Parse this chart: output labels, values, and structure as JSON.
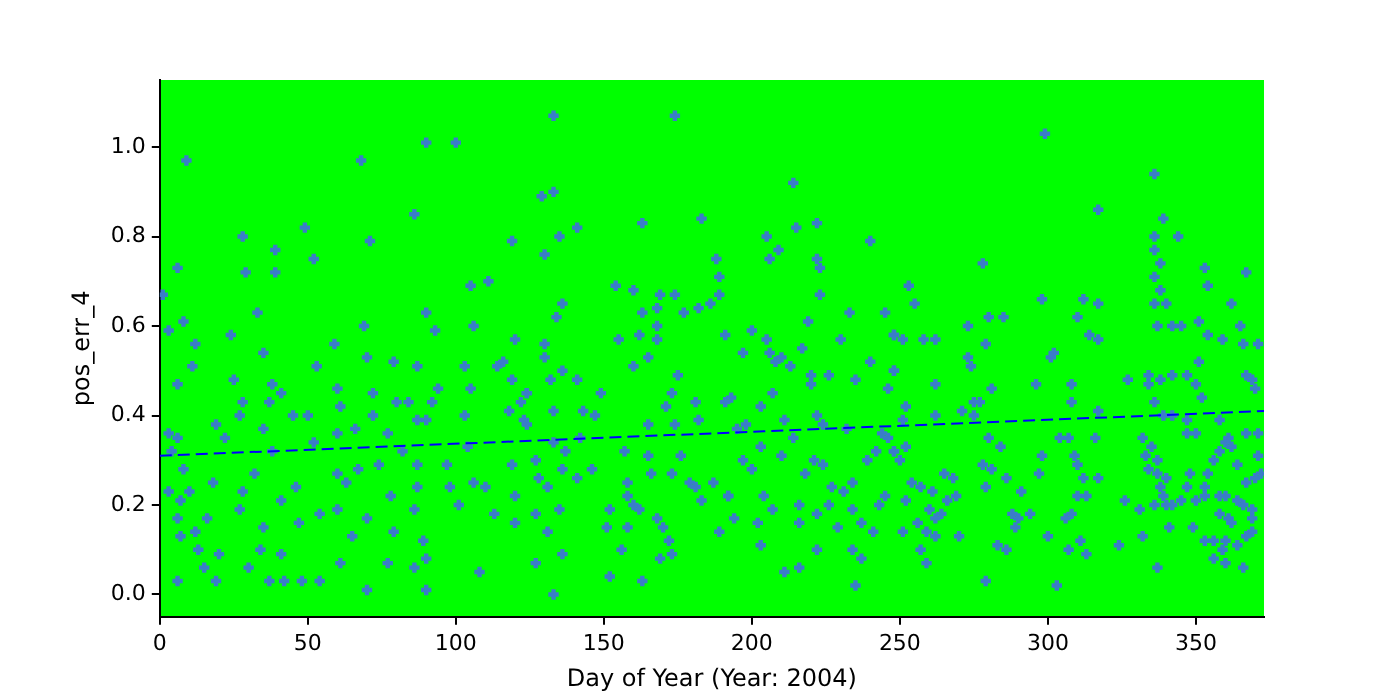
{
  "chart_data": {
    "type": "scatter",
    "xlabel": "Day of Year (Year: 2004)",
    "ylabel": "pos_err_4",
    "xlim": [
      0,
      373
    ],
    "xticks": [
      0,
      50,
      100,
      150,
      200,
      250,
      300,
      350
    ],
    "ylim": [
      -0.05,
      1.15
    ],
    "yticks": [
      {
        "value": 0,
        "label": "0.0"
      },
      0.2,
      0.4,
      0.6,
      0.8,
      {
        "value": 1,
        "label": "1.0"
      }
    ],
    "grid": false,
    "legend": false,
    "marker": "cross",
    "series": [
      {
        "color": "#3a7dc8",
        "x": [
          1,
          9,
          6,
          3,
          8,
          12,
          6,
          11,
          3,
          4,
          6,
          8,
          3,
          7,
          10,
          6,
          7,
          6,
          12,
          13,
          16,
          15,
          19,
          20,
          18,
          19,
          22,
          24,
          25,
          28,
          29,
          28,
          27,
          33,
          35,
          39,
          39,
          38,
          37,
          41,
          35,
          38,
          32,
          28,
          27,
          30,
          34,
          35,
          37,
          41,
          41,
          42,
          45,
          46,
          48,
          47,
          49,
          52,
          53,
          54,
          54,
          50,
          52,
          59,
          60,
          61,
          60,
          60,
          60,
          61,
          63,
          66,
          65,
          68,
          71,
          69,
          70,
          72,
          72,
          67,
          70,
          70,
          74,
          77,
          78,
          79,
          77,
          79,
          80,
          82,
          84,
          86,
          87,
          87,
          87,
          87,
          86,
          86,
          89,
          90,
          90,
          90,
          93,
          90,
          90,
          92,
          94,
          97,
          98,
          100,
          101,
          103,
          103,
          105,
          106,
          105,
          104,
          106,
          111,
          110,
          108,
          113,
          114,
          116,
          119,
          120,
          119,
          118,
          119,
          120,
          120,
          122,
          124,
          124,
          133,
          174,
          129,
          133,
          135,
          141,
          130,
          163,
          183,
          214,
          215,
          222,
          240,
          205,
          209,
          206,
          188,
          189,
          154,
          160,
          169,
          174,
          163,
          168,
          177,
          182,
          186,
          189,
          136,
          134,
          130,
          130,
          155,
          162,
          168,
          168,
          165,
          160,
          136,
          132,
          141,
          124,
          149,
          191,
          197,
          200,
          205,
          206,
          208,
          210,
          213,
          217,
          223,
          222,
          223,
          219,
          230,
          233,
          220,
          220,
          226,
          235,
          240,
          245,
          248,
          248,
          246,
          175,
          173,
          171,
          181,
          193,
          191,
          203,
          207,
          123,
          133,
          143,
          147,
          165,
          174,
          182,
          195,
          198,
          211,
          222,
          224,
          232,
          244,
          127,
          128,
          131,
          133,
          137,
          142,
          146,
          136,
          141,
          157,
          158,
          166,
          165,
          173,
          176,
          179,
          181,
          187,
          192,
          197,
          200,
          203,
          210,
          214,
          218,
          221,
          224,
          227,
          234,
          239,
          242,
          248,
          127,
          135,
          131,
          136,
          127,
          133,
          151,
          152,
          158,
          160,
          162,
          158,
          168,
          170,
          172,
          156,
          152,
          163,
          169,
          173,
          183,
          189,
          192,
          194,
          202,
          203,
          204,
          207,
          211,
          216,
          216,
          216,
          222,
          222,
          226,
          229,
          231,
          234,
          234,
          235,
          237,
          237,
          241,
          243,
          245,
          299,
          336,
          317,
          339,
          344,
          336,
          336,
          338,
          336,
          338,
          340,
          336,
          337,
          342,
          345,
          353,
          354,
          367,
          362,
          351,
          365,
          354,
          359,
          366,
          371,
          253,
          255,
          278,
          298,
          312,
          317,
          310,
          280,
          285,
          273,
          279,
          273,
          274,
          248,
          251,
          258,
          262,
          302,
          301,
          314,
          317,
          248,
          262,
          281,
          296,
          308,
          327,
          334,
          338,
          342,
          347,
          351,
          350,
          352,
          334,
          367,
          369,
          370,
          252,
          271,
          275,
          277,
          275,
          262,
          308,
          317,
          336,
          339,
          342,
          347,
          347,
          350,
          358,
          367,
          371,
          251,
          252,
          246,
          248,
          250,
          254,
          252,
          257,
          261,
          265,
          268,
          269,
          266,
          260,
          262,
          264,
          256,
          259,
          262,
          251,
          257,
          259,
          270,
          278,
          281,
          280,
          284,
          286,
          279,
          291,
          288,
          290,
          294,
          289,
          283,
          286,
          279,
          298,
          297,
          304,
          307,
          309,
          310,
          312,
          316,
          317,
          310,
          313,
          308,
          306,
          311,
          307,
          313,
          300,
          303,
          324,
          326,
          331,
          332,
          332,
          333,
          334,
          335,
          337,
          337,
          338,
          339,
          340,
          336,
          337,
          340,
          342,
          345,
          347,
          348,
          350,
          353,
          353,
          354,
          356,
          358,
          360,
          361,
          362,
          364,
          371,
          367,
          370,
          372,
          358,
          360,
          358,
          361,
          362,
          364,
          366,
          369,
          369,
          369,
          367,
          353,
          356,
          359,
          360,
          364,
          356,
          360,
          366,
          341,
          349
        ],
        "values": [
          0.67,
          0.97,
          0.73,
          0.59,
          0.61,
          0.56,
          0.47,
          0.51,
          0.36,
          0.32,
          0.35,
          0.28,
          0.23,
          0.21,
          0.23,
          0.17,
          0.13,
          0.03,
          0.14,
          0.1,
          0.17,
          0.06,
          0.03,
          0.09,
          0.25,
          0.38,
          0.35,
          0.58,
          0.48,
          0.8,
          0.72,
          0.43,
          0.4,
          0.63,
          0.54,
          0.77,
          0.72,
          0.47,
          0.43,
          0.45,
          0.37,
          0.32,
          0.27,
          0.23,
          0.19,
          0.06,
          0.1,
          0.15,
          0.03,
          0.21,
          0.09,
          0.03,
          0.4,
          0.24,
          0.03,
          0.16,
          0.82,
          0.75,
          0.51,
          0.18,
          0.03,
          0.4,
          0.34,
          0.56,
          0.46,
          0.42,
          0.36,
          0.27,
          0.19,
          0.07,
          0.25,
          0.37,
          0.13,
          0.97,
          0.79,
          0.6,
          0.53,
          0.4,
          0.45,
          0.28,
          0.17,
          0.01,
          0.29,
          0.36,
          0.22,
          0.14,
          0.07,
          0.52,
          0.43,
          0.32,
          0.43,
          0.85,
          0.51,
          0.39,
          0.29,
          0.24,
          0.19,
          0.06,
          0.12,
          1.01,
          0.63,
          0.39,
          0.59,
          0.01,
          0.08,
          0.43,
          0.46,
          0.29,
          0.24,
          1.01,
          0.2,
          0.51,
          0.4,
          0.69,
          0.6,
          0.46,
          0.33,
          0.25,
          0.7,
          0.24,
          0.05,
          0.18,
          0.51,
          0.52,
          0.79,
          0.57,
          0.48,
          0.41,
          0.29,
          0.22,
          0.16,
          0.43,
          0.38,
          0.45,
          1.07,
          1.07,
          0.89,
          0.9,
          0.8,
          0.82,
          0.76,
          0.83,
          0.84,
          0.92,
          0.82,
          0.83,
          0.79,
          0.8,
          0.77,
          0.75,
          0.75,
          0.71,
          0.69,
          0.68,
          0.67,
          0.67,
          0.63,
          0.64,
          0.63,
          0.64,
          0.65,
          0.67,
          0.65,
          0.62,
          0.56,
          0.53,
          0.57,
          0.58,
          0.6,
          0.57,
          0.53,
          0.51,
          0.5,
          0.48,
          0.48,
          0.45,
          0.45,
          0.58,
          0.54,
          0.59,
          0.57,
          0.54,
          0.52,
          0.53,
          0.51,
          0.55,
          0.67,
          0.75,
          0.73,
          0.61,
          0.57,
          0.63,
          0.49,
          0.47,
          0.49,
          0.48,
          0.52,
          0.63,
          0.58,
          0.5,
          0.46,
          0.49,
          0.45,
          0.42,
          0.43,
          0.44,
          0.43,
          0.42,
          0.45,
          0.39,
          0.41,
          0.41,
          0.4,
          0.38,
          0.38,
          0.39,
          0.37,
          0.38,
          0.39,
          0.4,
          0.38,
          0.37,
          0.36,
          0.3,
          0.26,
          0.24,
          0.34,
          0.32,
          0.35,
          0.28,
          0.28,
          0.26,
          0.32,
          0.25,
          0.27,
          0.31,
          0.27,
          0.31,
          0.25,
          0.24,
          0.25,
          0.22,
          0.3,
          0.28,
          0.33,
          0.31,
          0.35,
          0.27,
          0.3,
          0.29,
          0.24,
          0.25,
          0.3,
          0.32,
          0.32,
          0.18,
          0.19,
          0.14,
          0.09,
          0.07,
          0.0,
          0.15,
          0.19,
          0.22,
          0.2,
          0.19,
          0.15,
          0.17,
          0.15,
          0.12,
          0.1,
          0.04,
          0.03,
          0.08,
          0.09,
          0.21,
          0.14,
          0.22,
          0.17,
          0.16,
          0.11,
          0.22,
          0.19,
          0.05,
          0.2,
          0.16,
          0.06,
          0.18,
          0.1,
          0.2,
          0.15,
          0.23,
          0.19,
          0.1,
          0.02,
          0.08,
          0.16,
          0.14,
          0.2,
          0.22,
          1.03,
          0.94,
          0.86,
          0.84,
          0.8,
          0.8,
          0.77,
          0.74,
          0.71,
          0.68,
          0.65,
          0.65,
          0.6,
          0.6,
          0.6,
          0.73,
          0.69,
          0.72,
          0.65,
          0.61,
          0.6,
          0.58,
          0.57,
          0.56,
          0.56,
          0.69,
          0.65,
          0.74,
          0.66,
          0.66,
          0.65,
          0.62,
          0.62,
          0.62,
          0.6,
          0.56,
          0.53,
          0.51,
          0.58,
          0.57,
          0.57,
          0.57,
          0.54,
          0.53,
          0.58,
          0.57,
          0.5,
          0.47,
          0.46,
          0.47,
          0.47,
          0.48,
          0.49,
          0.48,
          0.49,
          0.49,
          0.52,
          0.47,
          0.44,
          0.47,
          0.49,
          0.48,
          0.46,
          0.42,
          0.41,
          0.43,
          0.43,
          0.4,
          0.4,
          0.43,
          0.41,
          0.43,
          0.4,
          0.4,
          0.39,
          0.36,
          0.36,
          0.39,
          0.36,
          0.36,
          0.39,
          0.33,
          0.35,
          0.32,
          0.3,
          0.25,
          0.21,
          0.24,
          0.23,
          0.27,
          0.26,
          0.22,
          0.21,
          0.19,
          0.17,
          0.18,
          0.16,
          0.14,
          0.13,
          0.14,
          0.1,
          0.07,
          0.13,
          0.29,
          0.28,
          0.35,
          0.33,
          0.26,
          0.24,
          0.23,
          0.18,
          0.17,
          0.18,
          0.15,
          0.11,
          0.1,
          0.03,
          0.31,
          0.27,
          0.35,
          0.35,
          0.31,
          0.29,
          0.26,
          0.35,
          0.26,
          0.22,
          0.22,
          0.18,
          0.17,
          0.12,
          0.1,
          0.09,
          0.13,
          0.02,
          0.11,
          0.21,
          0.19,
          0.13,
          0.35,
          0.31,
          0.28,
          0.33,
          0.3,
          0.27,
          0.24,
          0.22,
          0.2,
          0.2,
          0.06,
          0.26,
          0.2,
          0.21,
          0.24,
          0.27,
          0.21,
          0.24,
          0.22,
          0.27,
          0.3,
          0.32,
          0.34,
          0.35,
          0.33,
          0.29,
          0.31,
          0.25,
          0.26,
          0.27,
          0.22,
          0.22,
          0.18,
          0.17,
          0.16,
          0.21,
          0.2,
          0.19,
          0.17,
          0.14,
          0.13,
          0.12,
          0.12,
          0.1,
          0.12,
          0.11,
          0.08,
          0.07,
          0.06,
          0.15,
          0.15
        ]
      },
      {
        "type": "line",
        "color": "#0000ff",
        "line_style": "dashed",
        "marker": "none",
        "x": [
          0,
          373
        ],
        "values": [
          0.31,
          0.41
        ]
      }
    ]
  }
}
